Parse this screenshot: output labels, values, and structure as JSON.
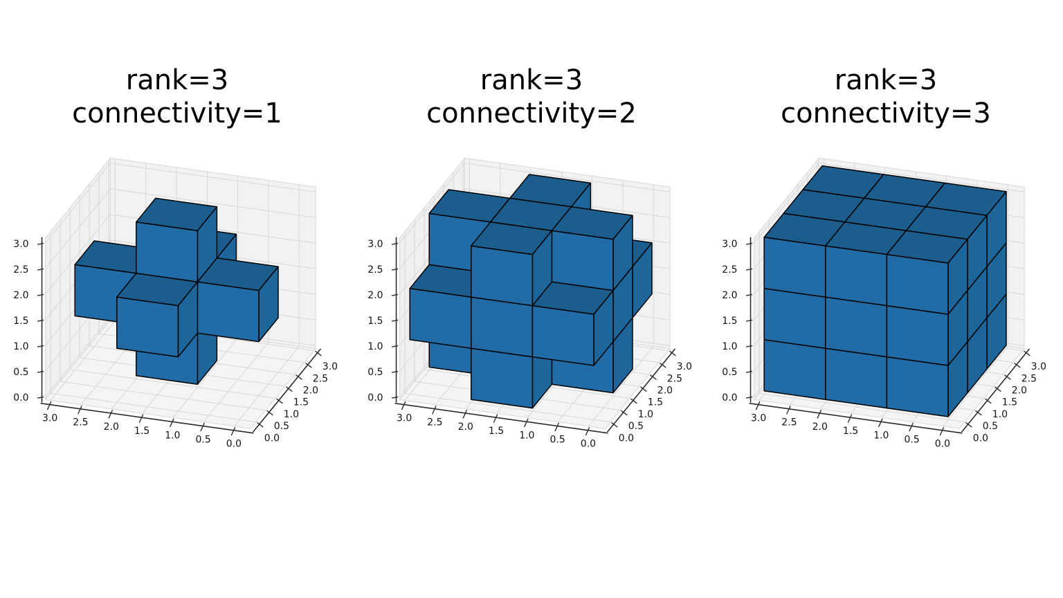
{
  "style": {
    "background": "#ffffff",
    "title_color": "#000000",
    "tick_label_color": "#111111",
    "axis_line_color": "#2b2b2b",
    "grid_color": "#d7d7d7",
    "pane_left": "#f0f0f1",
    "pane_right": "#f2f2f2",
    "pane_floor": "#f4f4f4",
    "pane_edge": "#d8d8d8",
    "voxel_left": "#216ba6",
    "voxel_right": "#1d669c",
    "voxel_top": "#1b5d8c",
    "voxel_edge": "#000000"
  },
  "chart_data": [
    {
      "type": "voxel3d",
      "title": "rank=3\nconnectivity=1",
      "rank": 3,
      "connectivity": 1,
      "xlim": [
        0,
        3
      ],
      "ylim": [
        0,
        3
      ],
      "zlim": [
        0,
        3
      ],
      "grid_step": 0.5,
      "x_tick_labels": [
        "3.0",
        "2.5",
        "2.0",
        "1.5",
        "1.0",
        "0.5",
        "0.0"
      ],
      "y_tick_labels": [
        "0.0",
        "0.5",
        "1.0",
        "1.5",
        "2.0",
        "2.5",
        "3.0"
      ],
      "z_tick_labels": [
        "0.0",
        "0.5",
        "1.0",
        "1.5",
        "2.0",
        "2.5",
        "3.0"
      ],
      "voxels": [
        [
          1,
          1,
          1
        ],
        [
          0,
          1,
          1
        ],
        [
          2,
          1,
          1
        ],
        [
          1,
          0,
          1
        ],
        [
          1,
          2,
          1
        ],
        [
          1,
          1,
          0
        ],
        [
          1,
          1,
          2
        ]
      ]
    },
    {
      "type": "voxel3d",
      "title": "rank=3\nconnectivity=2",
      "rank": 3,
      "connectivity": 2,
      "xlim": [
        0,
        3
      ],
      "ylim": [
        0,
        3
      ],
      "zlim": [
        0,
        3
      ],
      "grid_step": 0.5,
      "x_tick_labels": [
        "3.0",
        "2.5",
        "2.0",
        "1.5",
        "1.0",
        "0.5",
        "0.0"
      ],
      "y_tick_labels": [
        "0.0",
        "0.5",
        "1.0",
        "1.5",
        "2.0",
        "2.5",
        "3.0"
      ],
      "z_tick_labels": [
        "0.0",
        "0.5",
        "1.0",
        "1.5",
        "2.0",
        "2.5",
        "3.0"
      ],
      "voxels": [
        [
          0,
          1,
          0
        ],
        [
          1,
          0,
          0
        ],
        [
          1,
          1,
          0
        ],
        [
          1,
          2,
          0
        ],
        [
          2,
          1,
          0
        ],
        [
          0,
          0,
          1
        ],
        [
          0,
          1,
          1
        ],
        [
          0,
          2,
          1
        ],
        [
          1,
          0,
          1
        ],
        [
          1,
          1,
          1
        ],
        [
          1,
          2,
          1
        ],
        [
          2,
          0,
          1
        ],
        [
          2,
          1,
          1
        ],
        [
          2,
          2,
          1
        ],
        [
          0,
          1,
          2
        ],
        [
          1,
          0,
          2
        ],
        [
          1,
          1,
          2
        ],
        [
          1,
          2,
          2
        ],
        [
          2,
          1,
          2
        ]
      ]
    },
    {
      "type": "voxel3d",
      "title": "rank=3\nconnectivity=3",
      "rank": 3,
      "connectivity": 3,
      "xlim": [
        0,
        3
      ],
      "ylim": [
        0,
        3
      ],
      "zlim": [
        0,
        3
      ],
      "grid_step": 0.5,
      "x_tick_labels": [
        "3.0",
        "2.5",
        "2.0",
        "1.5",
        "1.0",
        "0.5",
        "0.0"
      ],
      "y_tick_labels": [
        "0.0",
        "0.5",
        "1.0",
        "1.5",
        "2.0",
        "2.5",
        "3.0"
      ],
      "z_tick_labels": [
        "0.0",
        "0.5",
        "1.0",
        "1.5",
        "2.0",
        "2.5",
        "3.0"
      ],
      "voxels": [
        [
          0,
          0,
          0
        ],
        [
          1,
          0,
          0
        ],
        [
          2,
          0,
          0
        ],
        [
          0,
          1,
          0
        ],
        [
          1,
          1,
          0
        ],
        [
          2,
          1,
          0
        ],
        [
          0,
          2,
          0
        ],
        [
          1,
          2,
          0
        ],
        [
          2,
          2,
          0
        ],
        [
          0,
          0,
          1
        ],
        [
          1,
          0,
          1
        ],
        [
          2,
          0,
          1
        ],
        [
          0,
          1,
          1
        ],
        [
          1,
          1,
          1
        ],
        [
          2,
          1,
          1
        ],
        [
          0,
          2,
          1
        ],
        [
          1,
          2,
          1
        ],
        [
          2,
          2,
          1
        ],
        [
          0,
          0,
          2
        ],
        [
          1,
          0,
          2
        ],
        [
          2,
          0,
          2
        ],
        [
          0,
          1,
          2
        ],
        [
          1,
          1,
          2
        ],
        [
          2,
          1,
          2
        ],
        [
          0,
          2,
          2
        ],
        [
          1,
          2,
          2
        ],
        [
          2,
          2,
          2
        ]
      ]
    }
  ]
}
